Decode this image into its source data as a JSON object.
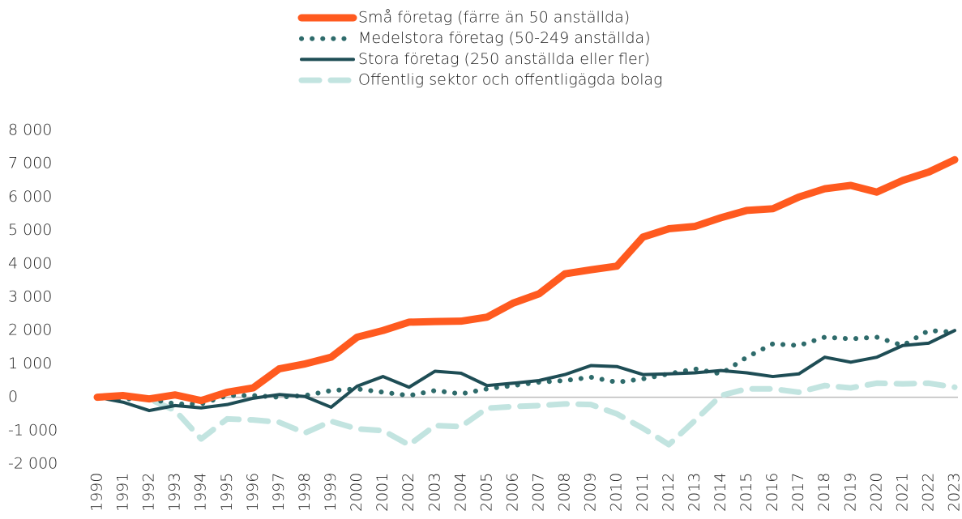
{
  "chart_data": {
    "type": "line",
    "categories": [
      "1990",
      "1991",
      "1992",
      "1993",
      "1994",
      "1995",
      "1996",
      "1997",
      "1998",
      "1999",
      "2000",
      "2001",
      "2002",
      "2003",
      "2004",
      "2005",
      "2006",
      "2007",
      "2008",
      "2009",
      "2010",
      "2011",
      "2012",
      "2013",
      "2014",
      "2015",
      "2016",
      "2017",
      "2018",
      "2019",
      "2020",
      "2021",
      "2022",
      "2023"
    ],
    "series": [
      {
        "name": "Små företag (färre än 50 anställda)",
        "color": "#ff5a1f",
        "style": "solid",
        "values": [
          0,
          50,
          -50,
          70,
          -100,
          150,
          280,
          850,
          1000,
          1200,
          1800,
          2000,
          2250,
          2270,
          2280,
          2400,
          2820,
          3100,
          3700,
          3820,
          3930,
          4800,
          5050,
          5120,
          5380,
          5600,
          5650,
          6000,
          6250,
          6350,
          6150,
          6500,
          6750,
          7120
        ]
      },
      {
        "name": "Medelstora företag (50-249 anställda)",
        "color": "#2e6b6b",
        "style": "dotted",
        "values": [
          0,
          -50,
          -50,
          -200,
          -200,
          50,
          50,
          0,
          50,
          200,
          250,
          150,
          50,
          200,
          100,
          250,
          350,
          450,
          500,
          600,
          450,
          550,
          700,
          850,
          700,
          1200,
          1600,
          1550,
          1800,
          1750,
          1800,
          1550,
          2000,
          1950
        ]
      },
      {
        "name": "Stora företag (250 anställda eller fler)",
        "color": "#1e4d55",
        "style": "solid-thin",
        "values": [
          0,
          -150,
          -400,
          -250,
          -320,
          -220,
          -30,
          80,
          20,
          -300,
          330,
          620,
          300,
          780,
          720,
          350,
          420,
          500,
          680,
          950,
          920,
          680,
          700,
          730,
          800,
          730,
          620,
          700,
          1200,
          1050,
          1200,
          1550,
          1620,
          2000
        ]
      },
      {
        "name": "Offentlig sektor och offentligägda bolag",
        "color": "#c2e4e0",
        "style": "dashed",
        "values": [
          0,
          50,
          -50,
          -400,
          -1250,
          -650,
          -680,
          -750,
          -1070,
          -720,
          -950,
          -1000,
          -1430,
          -850,
          -880,
          -330,
          -280,
          -250,
          -200,
          -220,
          -500,
          -930,
          -1420,
          -700,
          50,
          250,
          250,
          150,
          350,
          280,
          420,
          400,
          420,
          300
        ]
      }
    ],
    "ylim": [
      -2000,
      8000
    ],
    "yticks": [
      {
        "value": -2000,
        "label": "-2 000"
      },
      {
        "value": -1000,
        "label": "-1 000"
      },
      0,
      {
        "value": 1000,
        "label": "1 000"
      },
      {
        "value": 2000,
        "label": "2 000"
      },
      {
        "value": 3000,
        "label": "3 000"
      },
      {
        "value": 4000,
        "label": "4 000"
      },
      {
        "value": 5000,
        "label": "5 000"
      },
      {
        "value": 6000,
        "label": "6 000"
      },
      {
        "value": 7000,
        "label": "7 000"
      },
      {
        "value": 8000,
        "label": "8 000"
      }
    ],
    "legend": "top"
  }
}
